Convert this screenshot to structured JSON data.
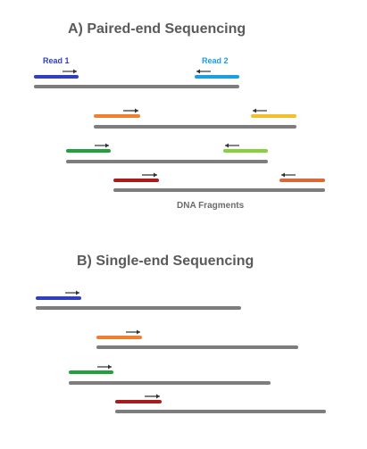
{
  "colors": {
    "fragment": "#7d7d7d",
    "arrow": "#333333",
    "read1_label": "#2f3fbd",
    "read2_label": "#1aa0e0"
  },
  "section_a": {
    "title": "A)  Paired-end Sequencing",
    "read1_label": "Read 1",
    "read2_label": "Read 2",
    "caption": "DNA Fragments",
    "fragments": [
      {
        "read1_color": "#2f3fbd",
        "read2_color": "#1b9fe0"
      },
      {
        "read1_color": "#f08030",
        "read2_color": "#f2c02a"
      },
      {
        "read1_color": "#1fa23c",
        "read2_color": "#86d23a"
      },
      {
        "read1_color": "#a81c1c",
        "read2_color": "#d86a3a"
      }
    ]
  },
  "section_b": {
    "title": "B)  Single-end Sequencing",
    "fragments": [
      {
        "read_color": "#2f3fbd"
      },
      {
        "read_color": "#f08030"
      },
      {
        "read_color": "#1fa23c"
      },
      {
        "read_color": "#a81c1c"
      }
    ]
  }
}
